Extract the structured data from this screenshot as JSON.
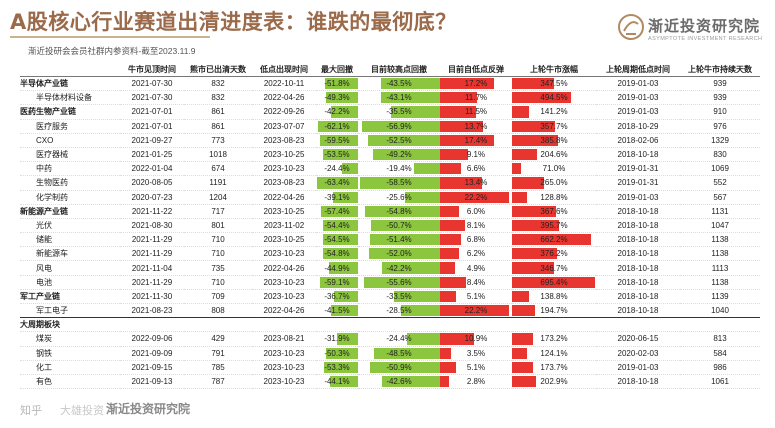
{
  "header": {
    "title": "A股核心行业赛道出清进度表：谁跌的最彻底？",
    "subtitle": "渐近投研会会员社群内参资料-截至2023.11.9",
    "logo_name": "渐近投资研究院",
    "logo_en": "ASYMPTOTE INVESTMENT RESEARCH"
  },
  "footer": {
    "left": "知乎",
    "mid": "大雄投资",
    "logo": "渐近投资研究院"
  },
  "colors": {
    "accent": "#9a6a4a",
    "drawdown_bar": "#8cc63f",
    "rise_bar": "#e8352f"
  },
  "table": {
    "columns": [
      "",
      "牛市见顶时间",
      "熊市已出清天数",
      "低点出现时间",
      "最大回撤",
      "目前较高点回撤",
      "目前自低点反弹",
      "上轮牛市涨幅",
      "上轮周期低点时间",
      "上轮牛市持续天数"
    ],
    "rows": [
      {
        "name": "半导体产业链",
        "group": true,
        "peak": "2021-07-30",
        "days": "832",
        "low": "2022-10-11",
        "maxdd": "-51.8%",
        "curdd": "-43.5%",
        "rebound": "17.2%",
        "rise": "347.5%",
        "prevlow": "2019-01-03",
        "prevdays": "939",
        "v_maxdd": 51.8,
        "v_curdd": 43.5,
        "v_reb": 17.2,
        "v_rise": 347.5
      },
      {
        "name": "半导体材料设备",
        "group": false,
        "peak": "2021-07-30",
        "days": "832",
        "low": "2022-04-26",
        "maxdd": "-49.3%",
        "curdd": "-43.1%",
        "rebound": "11.7%",
        "rise": "494.5%",
        "prevlow": "2019-01-03",
        "prevdays": "939",
        "v_maxdd": 49.3,
        "v_curdd": 43.1,
        "v_reb": 11.7,
        "v_rise": 494.5
      },
      {
        "name": "医药生物产业链",
        "group": true,
        "peak": "2021-07-01",
        "days": "861",
        "low": "2022-09-26",
        "maxdd": "-42.2%",
        "curdd": "-35.5%",
        "rebound": "11.5%",
        "rise": "141.2%",
        "prevlow": "2019-01-03",
        "prevdays": "910",
        "v_maxdd": 42.2,
        "v_curdd": 35.5,
        "v_reb": 11.5,
        "v_rise": 141.2
      },
      {
        "name": "医疗服务",
        "group": false,
        "peak": "2021-07-01",
        "days": "861",
        "low": "2023-07-07",
        "maxdd": "-62.1%",
        "curdd": "-56.9%",
        "rebound": "13.7%",
        "rise": "357.7%",
        "prevlow": "2018-10-29",
        "prevdays": "976",
        "v_maxdd": 62.1,
        "v_curdd": 56.9,
        "v_reb": 13.7,
        "v_rise": 357.7
      },
      {
        "name": "CXO",
        "group": false,
        "peak": "2021-09-27",
        "days": "773",
        "low": "2023-08-23",
        "maxdd": "-59.5%",
        "curdd": "-52.5%",
        "rebound": "17.4%",
        "rise": "385.8%",
        "prevlow": "2018-02-06",
        "prevdays": "1329",
        "v_maxdd": 59.5,
        "v_curdd": 52.5,
        "v_reb": 17.4,
        "v_rise": 385.8
      },
      {
        "name": "医疗器械",
        "group": false,
        "peak": "2021-01-25",
        "days": "1018",
        "low": "2023-10-25",
        "maxdd": "-53.5%",
        "curdd": "-49.2%",
        "rebound": "9.1%",
        "rise": "204.6%",
        "prevlow": "2018-10-18",
        "prevdays": "830",
        "v_maxdd": 53.5,
        "v_curdd": 49.2,
        "v_reb": 9.1,
        "v_rise": 204.6
      },
      {
        "name": "中药",
        "group": false,
        "peak": "2022-01-04",
        "days": "674",
        "low": "2023-10-23",
        "maxdd": "-24.4%",
        "curdd": "-19.4%",
        "rebound": "6.6%",
        "rise": "71.0%",
        "prevlow": "2019-01-31",
        "prevdays": "1069",
        "v_maxdd": 24.4,
        "v_curdd": 19.4,
        "v_reb": 6.6,
        "v_rise": 71.0
      },
      {
        "name": "生物医药",
        "group": false,
        "peak": "2020-08-05",
        "days": "1191",
        "low": "2023-08-23",
        "maxdd": "-63.4%",
        "curdd": "-58.5%",
        "rebound": "13.4%",
        "rise": "265.0%",
        "prevlow": "2019-01-31",
        "prevdays": "552",
        "v_maxdd": 63.4,
        "v_curdd": 58.5,
        "v_reb": 13.4,
        "v_rise": 265.0
      },
      {
        "name": "化学制药",
        "group": false,
        "peak": "2020-07-23",
        "days": "1204",
        "low": "2022-04-26",
        "maxdd": "-39.1%",
        "curdd": "-25.6%",
        "rebound": "22.2%",
        "rise": "128.8%",
        "prevlow": "2019-01-03",
        "prevdays": "567",
        "v_maxdd": 39.1,
        "v_curdd": 25.6,
        "v_reb": 22.2,
        "v_rise": 128.8
      },
      {
        "name": "新能源产业链",
        "group": true,
        "peak": "2021-11-22",
        "days": "717",
        "low": "2023-10-25",
        "maxdd": "-57.4%",
        "curdd": "-54.8%",
        "rebound": "6.0%",
        "rise": "367.6%",
        "prevlow": "2018-10-18",
        "prevdays": "1131",
        "v_maxdd": 57.4,
        "v_curdd": 54.8,
        "v_reb": 6.0,
        "v_rise": 367.6
      },
      {
        "name": "光伏",
        "group": false,
        "peak": "2021-08-30",
        "days": "801",
        "low": "2023-11-02",
        "maxdd": "-54.4%",
        "curdd": "-50.7%",
        "rebound": "8.1%",
        "rise": "395.7%",
        "prevlow": "2018-10-18",
        "prevdays": "1047",
        "v_maxdd": 54.4,
        "v_curdd": 50.7,
        "v_reb": 8.1,
        "v_rise": 395.7
      },
      {
        "name": "储能",
        "group": false,
        "peak": "2021-11-29",
        "days": "710",
        "low": "2023-10-25",
        "maxdd": "-54.5%",
        "curdd": "-51.4%",
        "rebound": "6.8%",
        "rise": "662.2%",
        "prevlow": "2018-10-18",
        "prevdays": "1138",
        "v_maxdd": 54.5,
        "v_curdd": 51.4,
        "v_reb": 6.8,
        "v_rise": 662.2
      },
      {
        "name": "新能源车",
        "group": false,
        "peak": "2021-11-29",
        "days": "710",
        "low": "2023-10-23",
        "maxdd": "-54.8%",
        "curdd": "-52.0%",
        "rebound": "6.2%",
        "rise": "376.2%",
        "prevlow": "2018-10-18",
        "prevdays": "1138",
        "v_maxdd": 54.8,
        "v_curdd": 52.0,
        "v_reb": 6.2,
        "v_rise": 376.2
      },
      {
        "name": "风电",
        "group": false,
        "peak": "2021-11-04",
        "days": "735",
        "low": "2022-04-26",
        "maxdd": "-44.9%",
        "curdd": "-42.2%",
        "rebound": "4.9%",
        "rise": "346.7%",
        "prevlow": "2018-10-18",
        "prevdays": "1113",
        "v_maxdd": 44.9,
        "v_curdd": 42.2,
        "v_reb": 4.9,
        "v_rise": 346.7
      },
      {
        "name": "电池",
        "group": false,
        "peak": "2021-11-29",
        "days": "710",
        "low": "2023-10-23",
        "maxdd": "-59.1%",
        "curdd": "-55.6%",
        "rebound": "8.4%",
        "rise": "695.4%",
        "prevlow": "2018-10-18",
        "prevdays": "1138",
        "v_maxdd": 59.1,
        "v_curdd": 55.6,
        "v_reb": 8.4,
        "v_rise": 695.4
      },
      {
        "name": "军工产业链",
        "group": true,
        "peak": "2021-11-30",
        "days": "709",
        "low": "2023-10-23",
        "maxdd": "-36.7%",
        "curdd": "-33.5%",
        "rebound": "5.1%",
        "rise": "138.8%",
        "prevlow": "2018-10-18",
        "prevdays": "1139",
        "v_maxdd": 36.7,
        "v_curdd": 33.5,
        "v_reb": 5.1,
        "v_rise": 138.8
      },
      {
        "name": "军工电子",
        "group": false,
        "peak": "2021-08-23",
        "days": "808",
        "low": "2022-04-26",
        "maxdd": "-41.5%",
        "curdd": "-28.5%",
        "rebound": "22.2%",
        "rise": "194.7%",
        "prevlow": "2018-10-18",
        "prevdays": "1040",
        "v_maxdd": 41.5,
        "v_curdd": 28.5,
        "v_reb": 22.2,
        "v_rise": 194.7
      },
      {
        "name": "大周期板块",
        "group": true,
        "heading": true
      },
      {
        "name": "煤炭",
        "group": false,
        "peak": "2022-09-06",
        "days": "429",
        "low": "2023-08-21",
        "maxdd": "-31.9%",
        "curdd": "-24.4%",
        "rebound": "10.9%",
        "rise": "173.2%",
        "prevlow": "2020-06-15",
        "prevdays": "813",
        "v_maxdd": 31.9,
        "v_curdd": 24.4,
        "v_reb": 10.9,
        "v_rise": 173.2
      },
      {
        "name": "钢铁",
        "group": false,
        "peak": "2021-09-09",
        "days": "791",
        "low": "2023-10-23",
        "maxdd": "-50.3%",
        "curdd": "-48.5%",
        "rebound": "3.5%",
        "rise": "124.1%",
        "prevlow": "2020-02-03",
        "prevdays": "584",
        "v_maxdd": 50.3,
        "v_curdd": 48.5,
        "v_reb": 3.5,
        "v_rise": 124.1
      },
      {
        "name": "化工",
        "group": false,
        "peak": "2021-09-15",
        "days": "785",
        "low": "2023-10-23",
        "maxdd": "-53.3%",
        "curdd": "-50.9%",
        "rebound": "5.1%",
        "rise": "173.7%",
        "prevlow": "2019-01-03",
        "prevdays": "986",
        "v_maxdd": 53.3,
        "v_curdd": 50.9,
        "v_reb": 5.1,
        "v_rise": 173.7
      },
      {
        "name": "有色",
        "group": false,
        "peak": "2021-09-13",
        "days": "787",
        "low": "2023-10-23",
        "maxdd": "-44.1%",
        "curdd": "-42.6%",
        "rebound": "2.8%",
        "rise": "202.9%",
        "prevlow": "2018-10-18",
        "prevdays": "1061",
        "v_maxdd": 44.1,
        "v_curdd": 42.6,
        "v_reb": 2.8,
        "v_rise": 202.9
      }
    ]
  }
}
